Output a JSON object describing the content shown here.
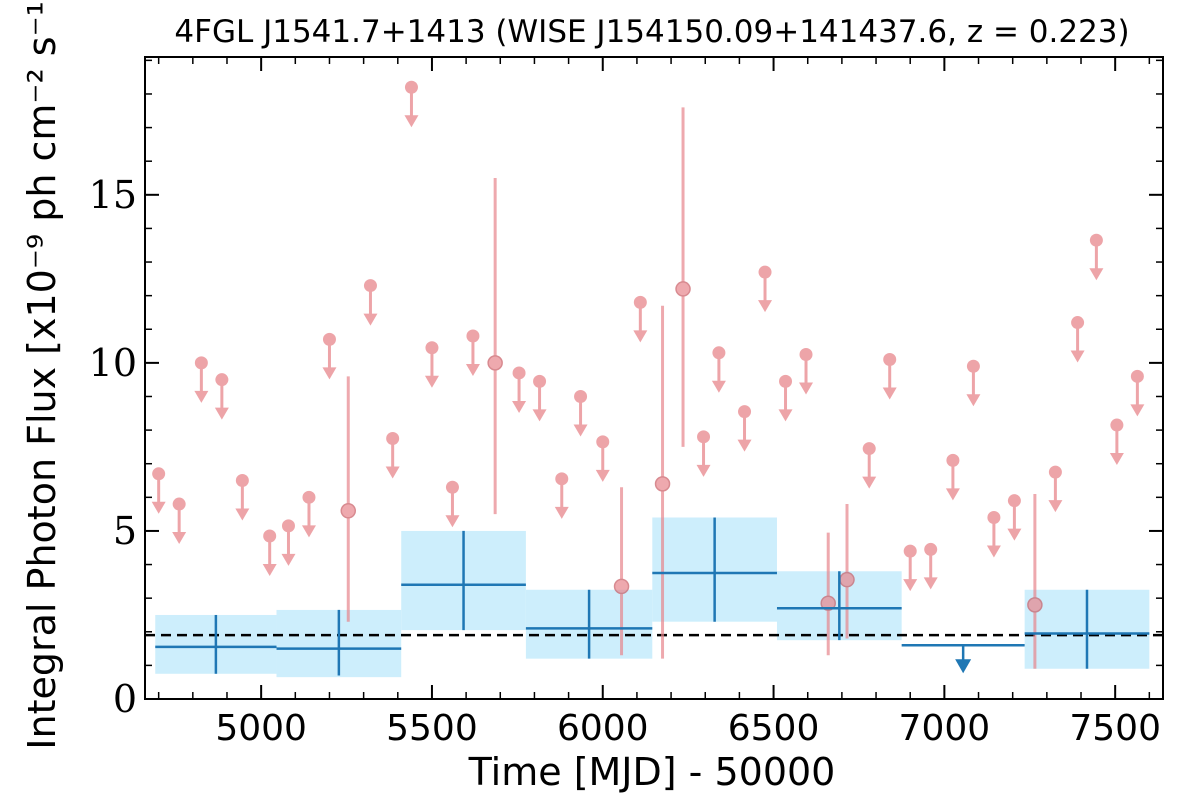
{
  "chart_data": {
    "type": "scatter",
    "title": "4FGL J1541.7+1413 (WISE J154150.09+141437.6, z = 0.223)",
    "xlabel": "Time [MJD] - 50000",
    "ylabel": "Integral Photon Flux [x10⁻⁹ ph cm⁻² s⁻¹]",
    "xlim": [
      4660,
      7640
    ],
    "ylim": [
      0,
      19.1
    ],
    "xticks": [
      5000,
      5500,
      6000,
      6500,
      7000,
      7500
    ],
    "xtick_labels": [
      "5000",
      "5500",
      "6000",
      "6500",
      "7000",
      "7500"
    ],
    "yticks": [
      0,
      5,
      10,
      15
    ],
    "ytick_labels": [
      "0",
      "5",
      "10",
      "15"
    ],
    "mean_flux_line": 1.9,
    "grid": false,
    "colors": {
      "short_bins": "#e8868c",
      "long_bins": "#1f77b4",
      "long_bin_band": "#cdeefc",
      "mean_line": "#000000"
    },
    "series": [
      {
        "marker": "upper-limit",
        "points": [
          {
            "x": 4700,
            "y": 6.7
          },
          {
            "x": 4760,
            "y": 5.8
          },
          {
            "x": 4825,
            "y": 10.0
          },
          {
            "x": 4885,
            "y": 9.5
          },
          {
            "x": 4945,
            "y": 6.5
          },
          {
            "x": 5025,
            "y": 4.85
          },
          {
            "x": 5080,
            "y": 5.15
          },
          {
            "x": 5140,
            "y": 6.0
          },
          {
            "x": 5200,
            "y": 10.7
          },
          {
            "x": 5320,
            "y": 12.3
          },
          {
            "x": 5385,
            "y": 7.75
          },
          {
            "x": 5440,
            "y": 18.2
          },
          {
            "x": 5500,
            "y": 10.45
          },
          {
            "x": 5560,
            "y": 6.3
          },
          {
            "x": 5620,
            "y": 10.8
          },
          {
            "x": 5755,
            "y": 9.7
          },
          {
            "x": 5815,
            "y": 9.45
          },
          {
            "x": 5880,
            "y": 6.55
          },
          {
            "x": 5935,
            "y": 9.0
          },
          {
            "x": 6000,
            "y": 7.65
          },
          {
            "x": 6110,
            "y": 11.8
          },
          {
            "x": 6295,
            "y": 7.8
          },
          {
            "x": 6340,
            "y": 10.3
          },
          {
            "x": 6415,
            "y": 8.55
          },
          {
            "x": 6475,
            "y": 12.7
          },
          {
            "x": 6535,
            "y": 9.45
          },
          {
            "x": 6595,
            "y": 10.25
          },
          {
            "x": 6780,
            "y": 7.45
          },
          {
            "x": 6840,
            "y": 10.1
          },
          {
            "x": 6900,
            "y": 4.4
          },
          {
            "x": 6960,
            "y": 4.45
          },
          {
            "x": 7025,
            "y": 7.1
          },
          {
            "x": 7085,
            "y": 9.9
          },
          {
            "x": 7145,
            "y": 5.4
          },
          {
            "x": 7205,
            "y": 5.9
          },
          {
            "x": 7325,
            "y": 6.75
          },
          {
            "x": 7390,
            "y": 11.2
          },
          {
            "x": 7445,
            "y": 13.65
          },
          {
            "x": 7505,
            "y": 8.15
          },
          {
            "x": 7565,
            "y": 9.6
          }
        ]
      },
      {
        "marker": "detection",
        "points": [
          {
            "x": 5255,
            "y": 5.6,
            "ylow": 2.3,
            "yhigh": 9.6
          },
          {
            "x": 5685,
            "y": 10.0,
            "ylow": 5.5,
            "yhigh": 15.5
          },
          {
            "x": 6055,
            "y": 3.35,
            "ylow": 1.3,
            "yhigh": 6.3
          },
          {
            "x": 6175,
            "y": 6.4,
            "ylow": 1.2,
            "yhigh": 11.7
          },
          {
            "x": 6235,
            "y": 12.2,
            "ylow": 7.5,
            "yhigh": 17.6
          },
          {
            "x": 6660,
            "y": 2.85,
            "ylow": 1.3,
            "yhigh": 4.95
          },
          {
            "x": 6715,
            "y": 3.55,
            "ylow": 1.8,
            "yhigh": 5.8
          },
          {
            "x": 7265,
            "y": 2.8,
            "ylow": 0.9,
            "yhigh": 6.1
          }
        ]
      },
      {
        "marker": "binned",
        "points": [
          {
            "xlow": 4690,
            "xhigh": 5045,
            "y": 1.55,
            "ylow": 0.75,
            "yhigh": 2.5,
            "band_low": 0.75,
            "band_high": 2.5
          },
          {
            "xlow": 5045,
            "xhigh": 5410,
            "y": 1.5,
            "ylow": 0.7,
            "yhigh": 2.65,
            "band_low": 0.65,
            "band_high": 2.65
          },
          {
            "xlow": 5410,
            "xhigh": 5775,
            "y": 3.4,
            "ylow": 2.05,
            "yhigh": 5.0,
            "band_low": 2.05,
            "band_high": 5.0
          },
          {
            "xlow": 5775,
            "xhigh": 6145,
            "y": 2.1,
            "ylow": 1.2,
            "yhigh": 3.25,
            "band_low": 1.2,
            "band_high": 3.25
          },
          {
            "xlow": 6145,
            "xhigh": 6510,
            "y": 3.75,
            "ylow": 2.3,
            "yhigh": 5.4,
            "band_low": 2.3,
            "band_high": 5.4
          },
          {
            "xlow": 6510,
            "xhigh": 6875,
            "y": 2.7,
            "ylow": 1.75,
            "yhigh": 3.8,
            "band_low": 1.75,
            "band_high": 3.8
          },
          {
            "xlow": 6875,
            "xhigh": 7235,
            "y": 1.6,
            "upper_limit": true
          },
          {
            "xlow": 7235,
            "xhigh": 7600,
            "y": 1.95,
            "ylow": 0.9,
            "yhigh": 3.25,
            "band_low": 0.9,
            "band_high": 3.25
          }
        ]
      }
    ]
  }
}
